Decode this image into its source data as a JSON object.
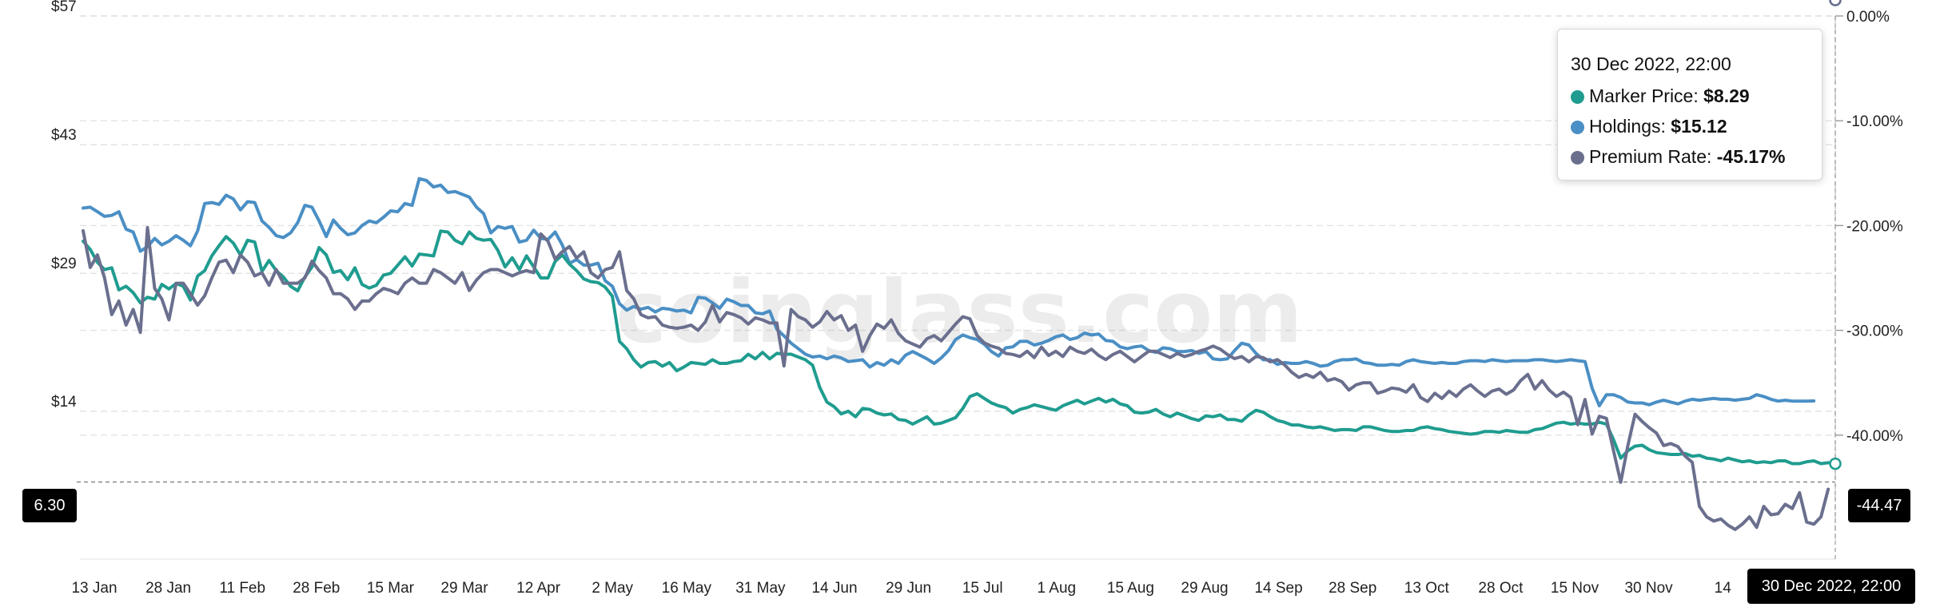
{
  "chart_data": {
    "type": "line",
    "x_tick_labels": [
      "13 Jan",
      "28 Jan",
      "11 Feb",
      "28 Feb",
      "15 Mar",
      "29 Mar",
      "12 Apr",
      "2 May",
      "16 May",
      "31 May",
      "14 Jun",
      "29 Jun",
      "15 Jul",
      "1 Aug",
      "15 Aug",
      "29 Aug",
      "14 Sep",
      "28 Sep",
      "13 Oct",
      "28 Oct",
      "15 Nov",
      "30 Nov",
      "14"
    ],
    "y_left_ticks": [
      "$57",
      "$43",
      "$29",
      "$14"
    ],
    "y_left_range": [
      0,
      57
    ],
    "y_right_ticks": [
      "0.00%",
      "-10.00%",
      "-20.00%",
      "-30.00%",
      "-40.00%"
    ],
    "y_right_range": [
      -50,
      0
    ],
    "grid": true,
    "watermark": "coinglass.com",
    "series": [
      {
        "name": "Marker Price",
        "axis": "left",
        "color": "#1f9c8f",
        "values": [
          32.5,
          31.6,
          30.2,
          29.4,
          29.6,
          27.2,
          27.6,
          26.9,
          25.8,
          26.4,
          26.2,
          27.8,
          27.3,
          27.9,
          27.6,
          26.1,
          28.7,
          29.3,
          30.9,
          32.0,
          33.0,
          32.3,
          31.0,
          32.6,
          32.4,
          29.2,
          30.4,
          29.3,
          28.6,
          27.6,
          27.1,
          28.6,
          29.7,
          31.8,
          31.0,
          29.1,
          29.3,
          28.3,
          29.6,
          27.8,
          27.4,
          27.7,
          28.8,
          29.0,
          29.9,
          30.8,
          29.8,
          31.1,
          31.0,
          30.9,
          33.6,
          33.5,
          32.6,
          32.2,
          33.5,
          32.8,
          32.6,
          32.7,
          31.5,
          29.7,
          30.7,
          29.4,
          30.9,
          29.7,
          28.5,
          28.5,
          30.3,
          31.0,
          30.0,
          29.3,
          28.4,
          28.1,
          28.0,
          27.5,
          26.5,
          21.6,
          20.8,
          19.6,
          18.8,
          19.3,
          19.4,
          18.9,
          19.3,
          18.4,
          18.8,
          19.3,
          19.2,
          19.1,
          19.6,
          19.2,
          19.2,
          19.4,
          19.5,
          20.2,
          19.7,
          20.4,
          19.7,
          20.3,
          20.2,
          20.2,
          19.9,
          19.6,
          19.0,
          16.6,
          15.0,
          14.5,
          13.7,
          14.0,
          13.4,
          14.3,
          14.2,
          13.8,
          13.6,
          13.7,
          13.1,
          13.0,
          12.6,
          13.0,
          13.4,
          12.6,
          12.7,
          13.0,
          13.3,
          14.3,
          15.6,
          15.9,
          15.4,
          14.9,
          14.6,
          14.4,
          13.8,
          14.2,
          14.4,
          14.7,
          14.5,
          14.3,
          14.1,
          14.6,
          14.9,
          15.2,
          14.8,
          15.1,
          15.4,
          15.0,
          15.3,
          14.8,
          14.6,
          13.9,
          13.8,
          13.9,
          14.2,
          13.7,
          13.4,
          13.8,
          13.5,
          13.2,
          13.0,
          13.5,
          13.4,
          13.6,
          13.1,
          13.1,
          12.9,
          13.6,
          14.1,
          13.9,
          13.4,
          13.0,
          12.8,
          12.5,
          12.5,
          12.3,
          12.2,
          12.3,
          12.1,
          11.9,
          12.0,
          12.0,
          11.9,
          12.3,
          12.3,
          12.1,
          11.9,
          11.8,
          11.8,
          11.9,
          11.9,
          12.2,
          12.3,
          12.1,
          12.0,
          11.8,
          11.7,
          11.6,
          11.5,
          11.6,
          11.8,
          11.8,
          11.7,
          11.9,
          11.8,
          11.7,
          11.7,
          12.0,
          12.1,
          12.4,
          12.7,
          12.8,
          12.6,
          12.7,
          12.6,
          12.6,
          12.8,
          12.6,
          10.9,
          8.9,
          9.7,
          10.2,
          10.3,
          9.8,
          9.5,
          9.4,
          9.3,
          9.3,
          9.4,
          9.1,
          9.2,
          8.9,
          8.8,
          8.6,
          8.9,
          8.7,
          8.5,
          8.6,
          8.4,
          8.5,
          8.4,
          8.6,
          8.6,
          8.3,
          8.3,
          8.5,
          8.6,
          8.3,
          8.4,
          8.29
        ]
      },
      {
        "name": "Holdings",
        "axis": "left",
        "color": "#4a8fc5",
        "values": [
          36.1,
          36.2,
          35.7,
          35.2,
          35.3,
          35.7,
          33.8,
          33.5,
          31.4,
          31.9,
          32.8,
          32.1,
          32.5,
          33.1,
          32.6,
          32.0,
          33.6,
          36.6,
          36.7,
          36.5,
          37.5,
          37.1,
          35.9,
          36.8,
          36.7,
          34.7,
          34.0,
          33.1,
          32.9,
          33.4,
          34.5,
          36.4,
          36.2,
          34.7,
          33.0,
          34.8,
          33.9,
          33.2,
          33.4,
          34.2,
          34.7,
          34.5,
          35.1,
          35.8,
          35.7,
          36.6,
          36.4,
          39.3,
          39.1,
          38.4,
          38.6,
          37.8,
          37.9,
          37.6,
          37.3,
          36.2,
          35.5,
          33.4,
          34.1,
          33.9,
          34.1,
          32.4,
          32.6,
          33.7,
          32.8,
          32.7,
          33.5,
          32.1,
          30.1,
          30.5,
          29.9,
          29.9,
          30.1,
          28.2,
          27.6,
          25.7,
          25.0,
          25.4,
          25.1,
          25.3,
          24.8,
          25.2,
          25.1,
          24.9,
          25.0,
          24.7,
          26.4,
          26.3,
          25.8,
          25.2,
          26.2,
          25.9,
          25.5,
          25.5,
          24.7,
          24.6,
          24.9,
          22.9,
          22.2,
          21.4,
          20.8,
          20.2,
          19.9,
          20.0,
          19.7,
          20.0,
          19.8,
          19.4,
          19.5,
          19.6,
          18.8,
          19.3,
          19.0,
          19.6,
          19.2,
          20.1,
          20.5,
          20.1,
          19.7,
          19.2,
          19.8,
          20.6,
          21.8,
          22.3,
          22.0,
          21.8,
          21.3,
          20.5,
          20.0,
          20.9,
          21.0,
          21.6,
          21.6,
          21.2,
          21.4,
          21.7,
          22.1,
          22.3,
          21.8,
          22.0,
          22.5,
          22.3,
          22.4,
          21.7,
          21.6,
          21.0,
          20.8,
          21.0,
          21.1,
          20.6,
          20.4,
          20.9,
          20.8,
          20.5,
          20.5,
          20.6,
          20.3,
          20.5,
          19.7,
          19.6,
          19.7,
          20.6,
          21.4,
          21.2,
          20.3,
          19.6,
          19.6,
          19.1,
          19.3,
          19.2,
          19.2,
          19.4,
          19.2,
          18.9,
          19.0,
          19.4,
          19.6,
          19.6,
          19.7,
          19.3,
          19.2,
          19.0,
          19.0,
          19.1,
          19.0,
          19.4,
          19.6,
          19.4,
          19.3,
          19.2,
          19.3,
          19.2,
          19.2,
          19.4,
          19.5,
          19.5,
          19.4,
          19.6,
          19.5,
          19.4,
          19.5,
          19.5,
          19.5,
          19.6,
          19.6,
          19.5,
          19.4,
          19.5,
          19.6,
          19.5,
          19.4,
          16.5,
          14.6,
          15.8,
          15.8,
          15.5,
          15.0,
          14.9,
          14.9,
          14.7,
          15.0,
          15.2,
          15.0,
          14.8,
          15.1,
          15.3,
          15.2,
          15.3,
          15.4,
          15.3,
          15.3,
          15.2,
          15.3,
          15.4,
          15.8,
          15.6,
          15.3,
          15.1,
          15.2,
          15.1,
          15.1,
          15.1,
          15.12
        ]
      },
      {
        "name": "Premium Rate",
        "axis": "right",
        "color": "#6b6f8e",
        "values": [
          -20.5,
          -24.0,
          -22.8,
          -25.0,
          -28.5,
          -27.2,
          -29.5,
          -28.0,
          -30.2,
          -20.2,
          -26.0,
          -27.0,
          -29.0,
          -25.5,
          -25.5,
          -26.5,
          -27.6,
          -26.7,
          -25.0,
          -23.5,
          -23.3,
          -24.5,
          -22.8,
          -23.5,
          -24.8,
          -24.5,
          -25.7,
          -24.2,
          -25.5,
          -25.5,
          -25.5,
          -25.0,
          -23.4,
          -24.3,
          -25.0,
          -26.5,
          -26.5,
          -27.0,
          -28.0,
          -27.2,
          -27.2,
          -26.5,
          -26.0,
          -26.2,
          -26.5,
          -25.5,
          -25.0,
          -25.5,
          -25.5,
          -24.2,
          -24.5,
          -25.0,
          -25.5,
          -24.5,
          -26.2,
          -25.2,
          -24.5,
          -24.2,
          -24.2,
          -24.5,
          -24.8,
          -24.5,
          -24.3,
          -24.5,
          -20.8,
          -21.5,
          -23.2,
          -22.5,
          -22.0,
          -23.1,
          -22.5,
          -24.5,
          -25.0,
          -24.2,
          -24.0,
          -22.5,
          -26.2,
          -27.0,
          -28.5,
          -28.8,
          -28.7,
          -29.5,
          -29.7,
          -29.8,
          -29.7,
          -29.5,
          -30.0,
          -29.2,
          -27.6,
          -29.2,
          -28.3,
          -28.5,
          -28.8,
          -29.4,
          -28.8,
          -29.0,
          -29.3,
          -29.3,
          -33.4,
          -28.0,
          -28.7,
          -29.0,
          -29.7,
          -29.2,
          -28.2,
          -29.0,
          -28.6,
          -30.0,
          -29.5,
          -32.0,
          -30.5,
          -29.4,
          -29.8,
          -29.0,
          -30.3,
          -31.0,
          -31.3,
          -31.6,
          -30.8,
          -30.5,
          -31.0,
          -30.2,
          -29.4,
          -28.7,
          -28.9,
          -30.5,
          -31.2,
          -31.5,
          -31.7,
          -32.2,
          -32.3,
          -32.5,
          -32.0,
          -32.6,
          -31.6,
          -32.4,
          -32.0,
          -32.5,
          -31.6,
          -32.0,
          -32.2,
          -31.8,
          -32.4,
          -32.8,
          -32.3,
          -32.0,
          -32.5,
          -33.0,
          -32.5,
          -32.0,
          -32.0,
          -32.3,
          -32.6,
          -32.2,
          -32.5,
          -32.3,
          -32.0,
          -31.8,
          -31.5,
          -31.8,
          -32.3,
          -32.7,
          -32.5,
          -33.0,
          -32.5,
          -32.6,
          -33.0,
          -32.8,
          -33.3,
          -34.0,
          -34.5,
          -34.2,
          -34.5,
          -34.0,
          -34.8,
          -34.6,
          -34.9,
          -35.7,
          -35.2,
          -35.0,
          -35.0,
          -36.0,
          -35.8,
          -35.5,
          -35.6,
          -35.9,
          -35.2,
          -36.4,
          -36.8,
          -36.0,
          -36.5,
          -35.8,
          -36.3,
          -35.6,
          -35.2,
          -35.8,
          -36.3,
          -35.8,
          -35.6,
          -36.1,
          -35.7,
          -34.8,
          -34.2,
          -35.6,
          -34.8,
          -35.7,
          -36.3,
          -35.9,
          -36.4,
          -39.0,
          -36.6,
          -39.9,
          -38.2,
          -38.4,
          -41.5,
          -44.5,
          -41.0,
          -38.0,
          -38.7,
          -39.3,
          -39.8,
          -41.0,
          -40.8,
          -41.1,
          -42.0,
          -42.6,
          -46.8,
          -47.8,
          -48.2,
          -48.0,
          -48.6,
          -49.0,
          -48.5,
          -47.8,
          -48.8,
          -46.8,
          -47.6,
          -47.5,
          -46.6,
          -47.0,
          -45.5,
          -48.3,
          -48.5,
          -47.8,
          -45.17
        ]
      }
    ],
    "tooltip": {
      "title": "30 Dec 2022, 22:00",
      "rows": [
        {
          "label": "Marker Price:",
          "value": "$8.29",
          "color": "#1f9c8f"
        },
        {
          "label": "Holdings:",
          "value": "$15.12",
          "color": "#4a8fc5"
        },
        {
          "label": "Premium Rate:",
          "value": "-45.17%",
          "color": "#6b6f8e"
        }
      ]
    },
    "crosshair": {
      "y_left_label": "6.30",
      "y_left_value": 6.3,
      "y_right_label": "-44.47",
      "x_label": "30 Dec 2022, 22:00"
    }
  }
}
